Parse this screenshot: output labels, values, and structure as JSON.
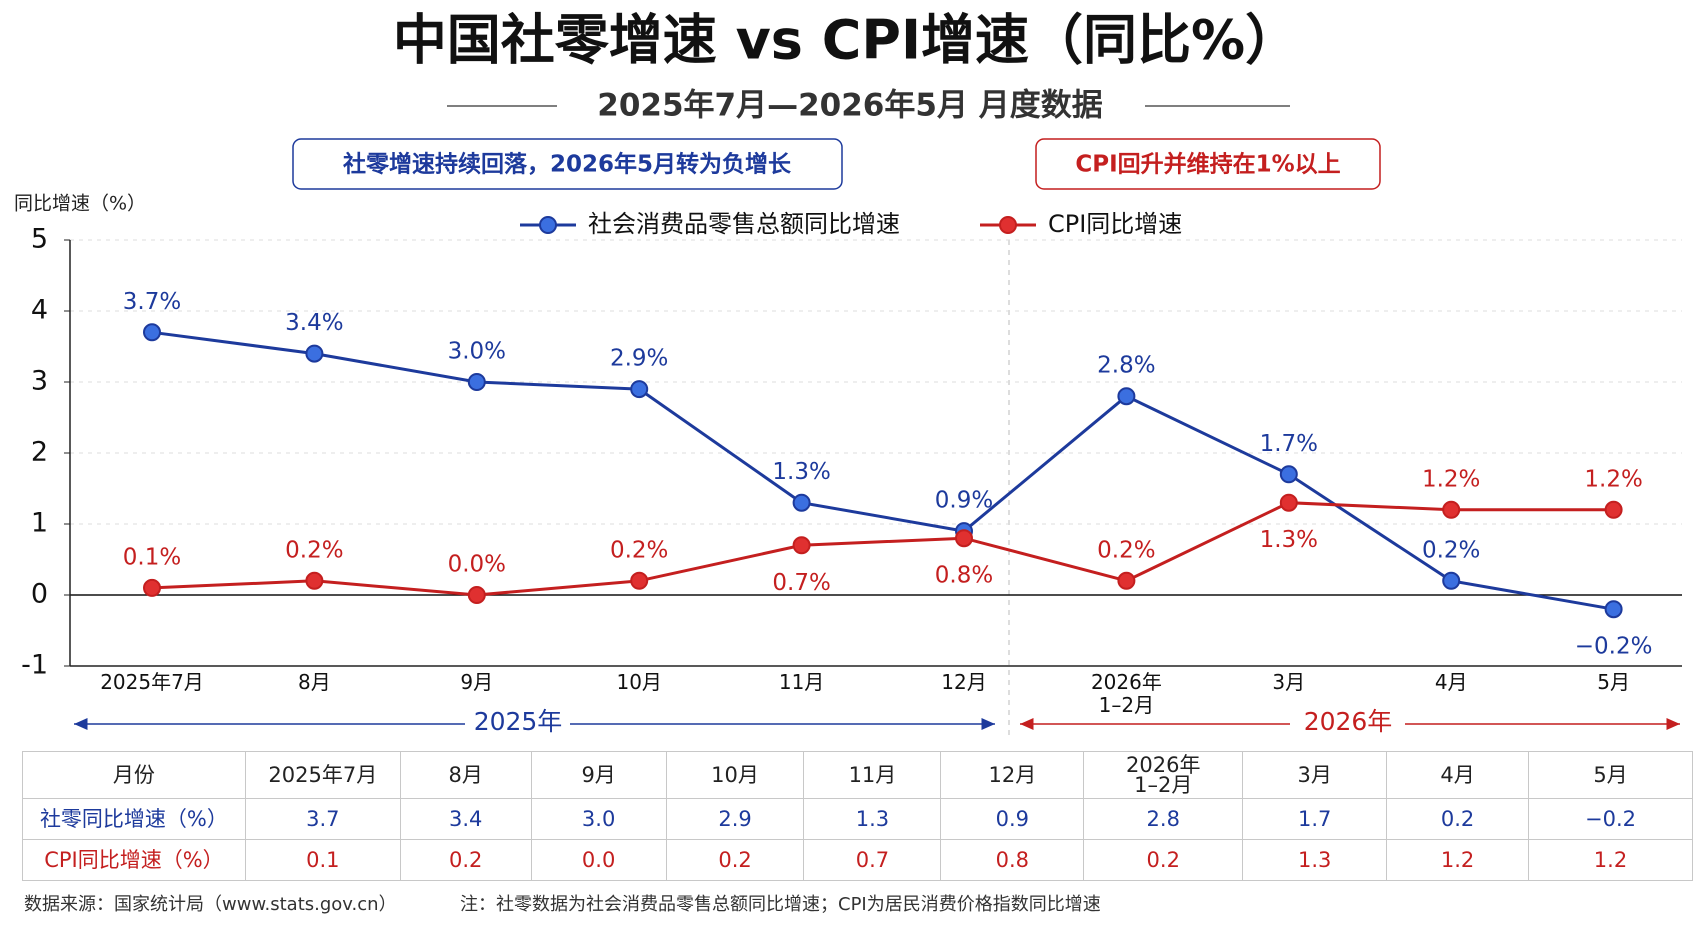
{
  "chart_data": {
    "type": "line",
    "title": "中国社零增速 vs CPI增速（同比%）",
    "subtitle": "2025年7月—2026年5月  月度数据",
    "annotations": [
      "社零增速持续回落，2026年5月转为负增长",
      "CPI回升并维持在1%以上"
    ],
    "y_label": "同比增速（%）",
    "categories": [
      "2025年7月",
      "8月",
      "9月",
      "10月",
      "11月",
      "12月",
      "2026年\n1–2月",
      "3月",
      "4月",
      "5月"
    ],
    "year_labels": [
      "2025年",
      "2026年"
    ],
    "series": [
      {
        "name": "社会消费品零售总额同比增速",
        "color": "#1d3a9c",
        "values": [
          3.7,
          3.4,
          3.0,
          2.9,
          1.3,
          0.9,
          2.8,
          1.7,
          0.2,
          -0.2
        ],
        "value_labels": [
          "3.7%",
          "3.4%",
          "3.0%",
          "2.9%",
          "1.3%",
          "0.9%",
          "2.8%",
          "1.7%",
          "0.2%",
          "−0.2%"
        ]
      },
      {
        "name": "CPI同比增速",
        "color": "#c41f1f",
        "values": [
          0.1,
          0.2,
          0.0,
          0.2,
          0.7,
          0.8,
          0.2,
          1.3,
          1.2,
          1.2
        ],
        "value_labels": [
          "0.1%",
          "0.2%",
          "0.0%",
          "0.2%",
          "0.7%",
          "0.8%",
          "0.2%",
          "1.3%",
          "1.2%",
          "1.2%"
        ]
      }
    ],
    "ylim": [
      -1,
      5
    ],
    "yticks": [
      -1,
      0,
      1,
      2,
      3,
      4,
      5
    ],
    "grid": true
  },
  "table": {
    "header": "月份",
    "rows": [
      {
        "label": "社零同比增速（%）",
        "cells": [
          "3.7",
          "3.4",
          "3.0",
          "2.9",
          "1.3",
          "0.9",
          "2.8",
          "1.7",
          "0.2",
          "−0.2"
        ]
      },
      {
        "label": "CPI同比增速（%）",
        "cells": [
          "0.1",
          "0.2",
          "0.0",
          "0.2",
          "0.7",
          "0.8",
          "0.2",
          "1.3",
          "1.2",
          "1.2"
        ]
      }
    ]
  },
  "footer": {
    "source": "数据来源：国家统计局（www.stats.gov.cn）",
    "note": "注：社零数据为社会消费品零售总额同比增速；CPI为居民消费价格指数同比增速"
  }
}
